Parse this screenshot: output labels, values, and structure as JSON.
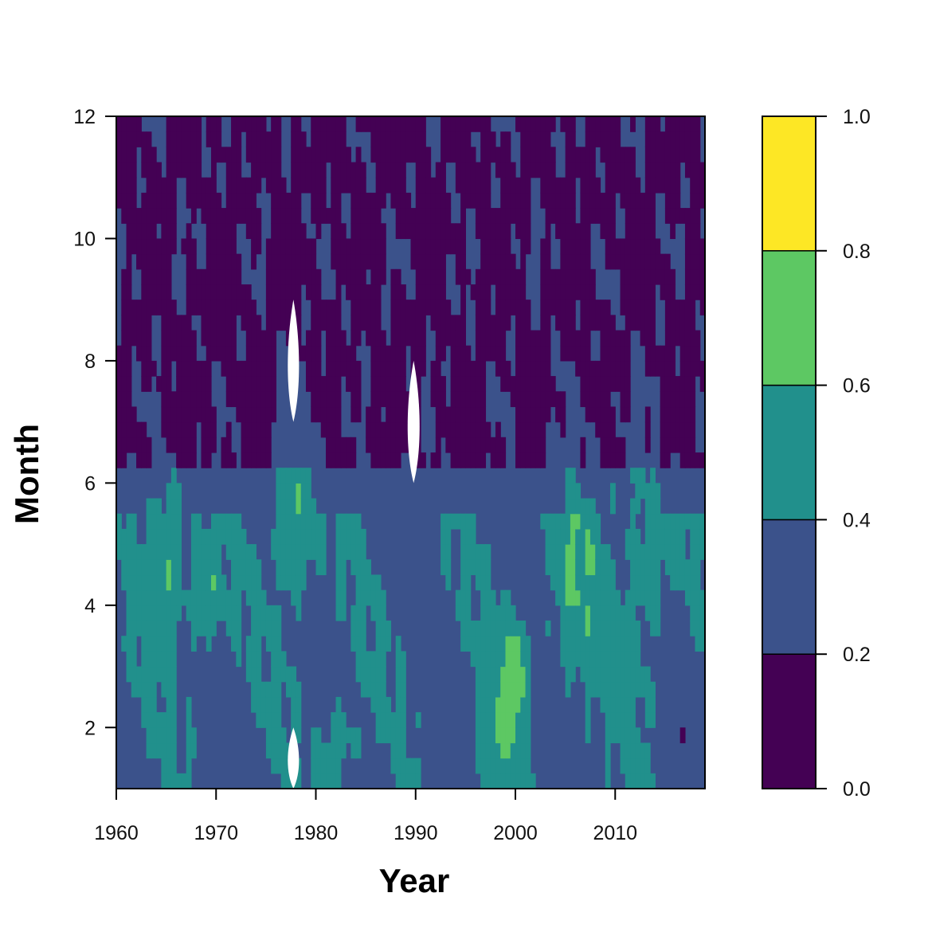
{
  "chart_data": {
    "type": "heatmap",
    "subtype": "filled-contour",
    "title": "",
    "xlabel": "Year",
    "ylabel": "Month",
    "xlim": [
      1960,
      2019
    ],
    "ylim": [
      1,
      12
    ],
    "x_ticks": [
      1960,
      1970,
      1980,
      1990,
      2000,
      2010
    ],
    "y_ticks": [
      2,
      4,
      6,
      8,
      10,
      12
    ],
    "x_tick_labels": [
      "1960",
      "1970",
      "1980",
      "1990",
      "2000",
      "2010"
    ],
    "y_tick_labels": [
      "2",
      "4",
      "6",
      "8",
      "10",
      "12"
    ],
    "color_scale": {
      "levels": [
        0.0,
        0.2,
        0.4,
        0.6,
        0.8,
        1.0
      ],
      "level_labels": [
        "0.0",
        "0.2",
        "0.4",
        "0.6",
        "0.8",
        "1.0"
      ],
      "colors": [
        "#440154",
        "#3B528B",
        "#21908C",
        "#5DC863",
        "#FDE725"
      ]
    },
    "grid": false,
    "missing_regions": [
      {
        "year_range": [
          1977,
          1978.5
        ],
        "month_range": [
          7,
          9
        ]
      },
      {
        "year_range": [
          1989,
          1990.6
        ],
        "month_range": [
          6,
          8
        ]
      },
      {
        "year_range": [
          1977,
          1978.5
        ],
        "month_range": [
          1,
          2
        ]
      }
    ],
    "summary_by_period": {
      "description_note": "",
      "months_7_12": "mostly 0.0-0.4 (dark purple and blue)",
      "months_1_6": "mostly 0.2-0.6 with scattered 0.6-1.0 patches"
    }
  }
}
